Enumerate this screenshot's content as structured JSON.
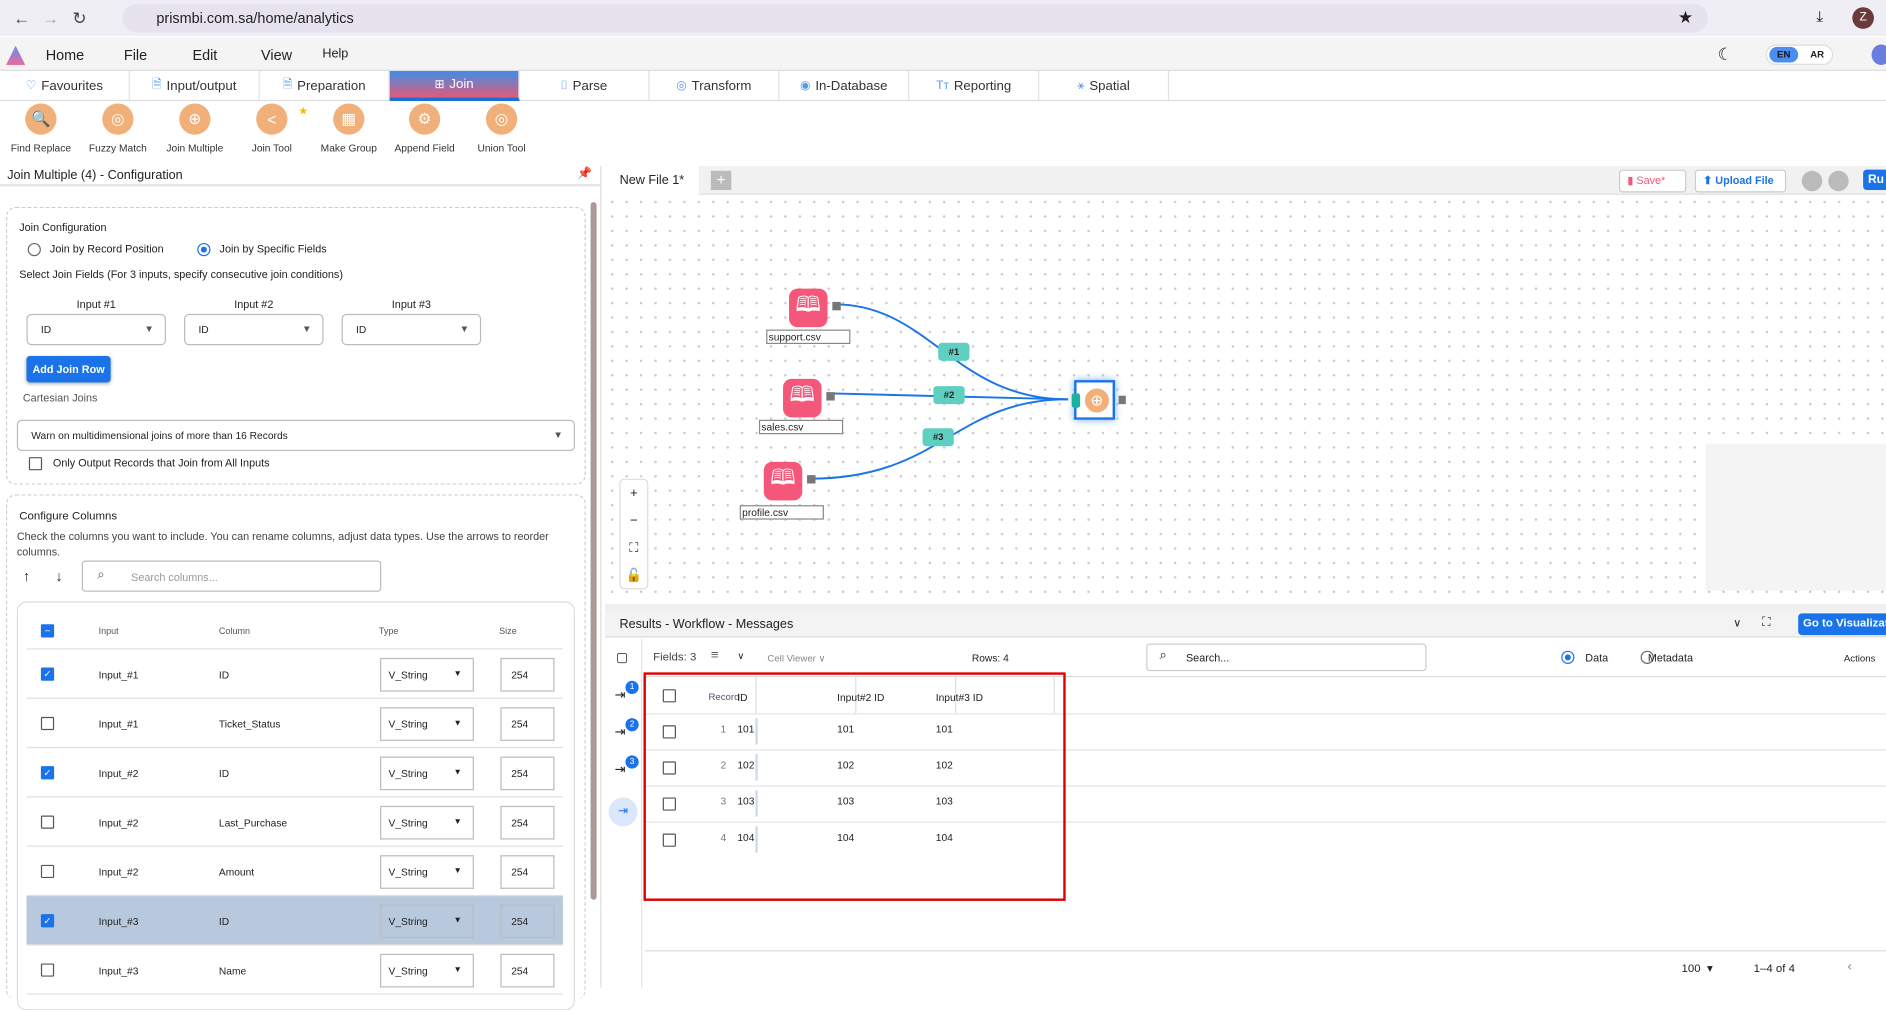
{
  "browser": {
    "url": "prismbi.com.sa/home/analytics",
    "profile": "Z"
  },
  "menu": [
    "Home",
    "File",
    "Edit",
    "View",
    "Help"
  ],
  "lang": {
    "en": "EN",
    "ar": "AR"
  },
  "ribbon_tabs": [
    {
      "label": "Favourites",
      "icon": "heart-icon"
    },
    {
      "label": "Input/output",
      "icon": "file-io-icon"
    },
    {
      "label": "Preparation",
      "icon": "file-p-icon"
    },
    {
      "label": "Join",
      "icon": "join-icon",
      "active": true
    },
    {
      "label": "Parse",
      "icon": "parse-icon"
    },
    {
      "label": "Transform",
      "icon": "transform-icon"
    },
    {
      "label": "In-Database",
      "icon": "database-icon"
    },
    {
      "label": "Reporting",
      "icon": "reporting-icon"
    },
    {
      "label": "Spatial",
      "icon": "spatial-icon"
    }
  ],
  "tools": [
    {
      "label": "Find Replace",
      "glyph": "🔍"
    },
    {
      "label": "Fuzzy Match",
      "glyph": "◎"
    },
    {
      "label": "Join Multiple",
      "glyph": "⊕"
    },
    {
      "label": "Join Tool",
      "glyph": "<"
    },
    {
      "label": "Make Group",
      "glyph": "▦"
    },
    {
      "label": "Append Field",
      "glyph": "⚙"
    },
    {
      "label": "Union Tool",
      "glyph": "◎"
    }
  ],
  "config": {
    "title": "Join Multiple (4) - Configuration",
    "join_config_label": "Join Configuration",
    "radio_record_position": "Join by Record Position",
    "radio_specific_fields": "Join by Specific Fields",
    "select_fields_label": "Select Join Fields (For 3 inputs, specify consecutive join conditions)",
    "inputs": [
      {
        "label": "Input #1",
        "value": "ID"
      },
      {
        "label": "Input #2",
        "value": "ID"
      },
      {
        "label": "Input #3",
        "value": "ID"
      }
    ],
    "add_join_row": "Add Join Row",
    "cartesian_label": "Cartesian Joins",
    "cartesian_value": "Warn on multidimensional joins of more than 16 Records",
    "only_output_label": "Only Output Records that Join from All Inputs",
    "configure_columns_title": "Configure Columns",
    "configure_columns_help": "Check the columns you want to include. You can rename columns, adjust data types. Use the arrows to reorder columns.",
    "search_placeholder": "Search columns...",
    "headers": [
      "Input",
      "Column",
      "Type",
      "Size"
    ],
    "rows": [
      {
        "checked": true,
        "input": "Input_#1",
        "column": "ID",
        "type": "V_String",
        "size": "254"
      },
      {
        "checked": false,
        "input": "Input_#1",
        "column": "Ticket_Status",
        "type": "V_String",
        "size": "254"
      },
      {
        "checked": true,
        "input": "Input_#2",
        "column": "ID",
        "type": "V_String",
        "size": "254"
      },
      {
        "checked": false,
        "input": "Input_#2",
        "column": "Last_Purchase",
        "type": "V_String",
        "size": "254"
      },
      {
        "checked": false,
        "input": "Input_#2",
        "column": "Amount",
        "type": "V_String",
        "size": "254"
      },
      {
        "checked": true,
        "input": "Input_#3",
        "column": "ID",
        "type": "V_String",
        "size": "254",
        "highlighted": true
      },
      {
        "checked": false,
        "input": "Input_#3",
        "column": "Name",
        "type": "V_String",
        "size": "254"
      }
    ]
  },
  "canvas": {
    "file_tab": "New File 1*",
    "save": "Save*",
    "upload": "Upload File",
    "run": "Ru",
    "nodes": [
      {
        "label": "support.csv"
      },
      {
        "label": "sales.csv"
      },
      {
        "label": "profile.csv"
      }
    ],
    "connections": [
      "#1",
      "#2",
      "#3"
    ],
    "zoom_controls": [
      "+",
      "−"
    ]
  },
  "results": {
    "title": "Results - Workflow - Messages",
    "go_visualize": "Go to Visualizat",
    "fields": "Fields: 3",
    "cell_viewer": "Cell Viewer",
    "rows_count": "Rows: 4",
    "search_placeholder": "Search...",
    "data_label": "Data",
    "metadata_label": "Metadata",
    "actions": "Actions",
    "badges": [
      "1",
      "2",
      "3"
    ],
    "columns": [
      "Record",
      "ID",
      "Input#2 ID",
      "Input#3 ID"
    ],
    "data": [
      [
        "1",
        "101",
        "101",
        "101"
      ],
      [
        "2",
        "102",
        "102",
        "102"
      ],
      [
        "3",
        "103",
        "103",
        "103"
      ],
      [
        "4",
        "104",
        "104",
        "104"
      ]
    ],
    "page_size": "100",
    "pagination": "1–4 of 4"
  },
  "colors": {
    "accent": "#1a73e8",
    "node": "#f5577a",
    "tool": "#f1b07a",
    "tag": "#5ecfc0",
    "highlight": "#e00000"
  }
}
